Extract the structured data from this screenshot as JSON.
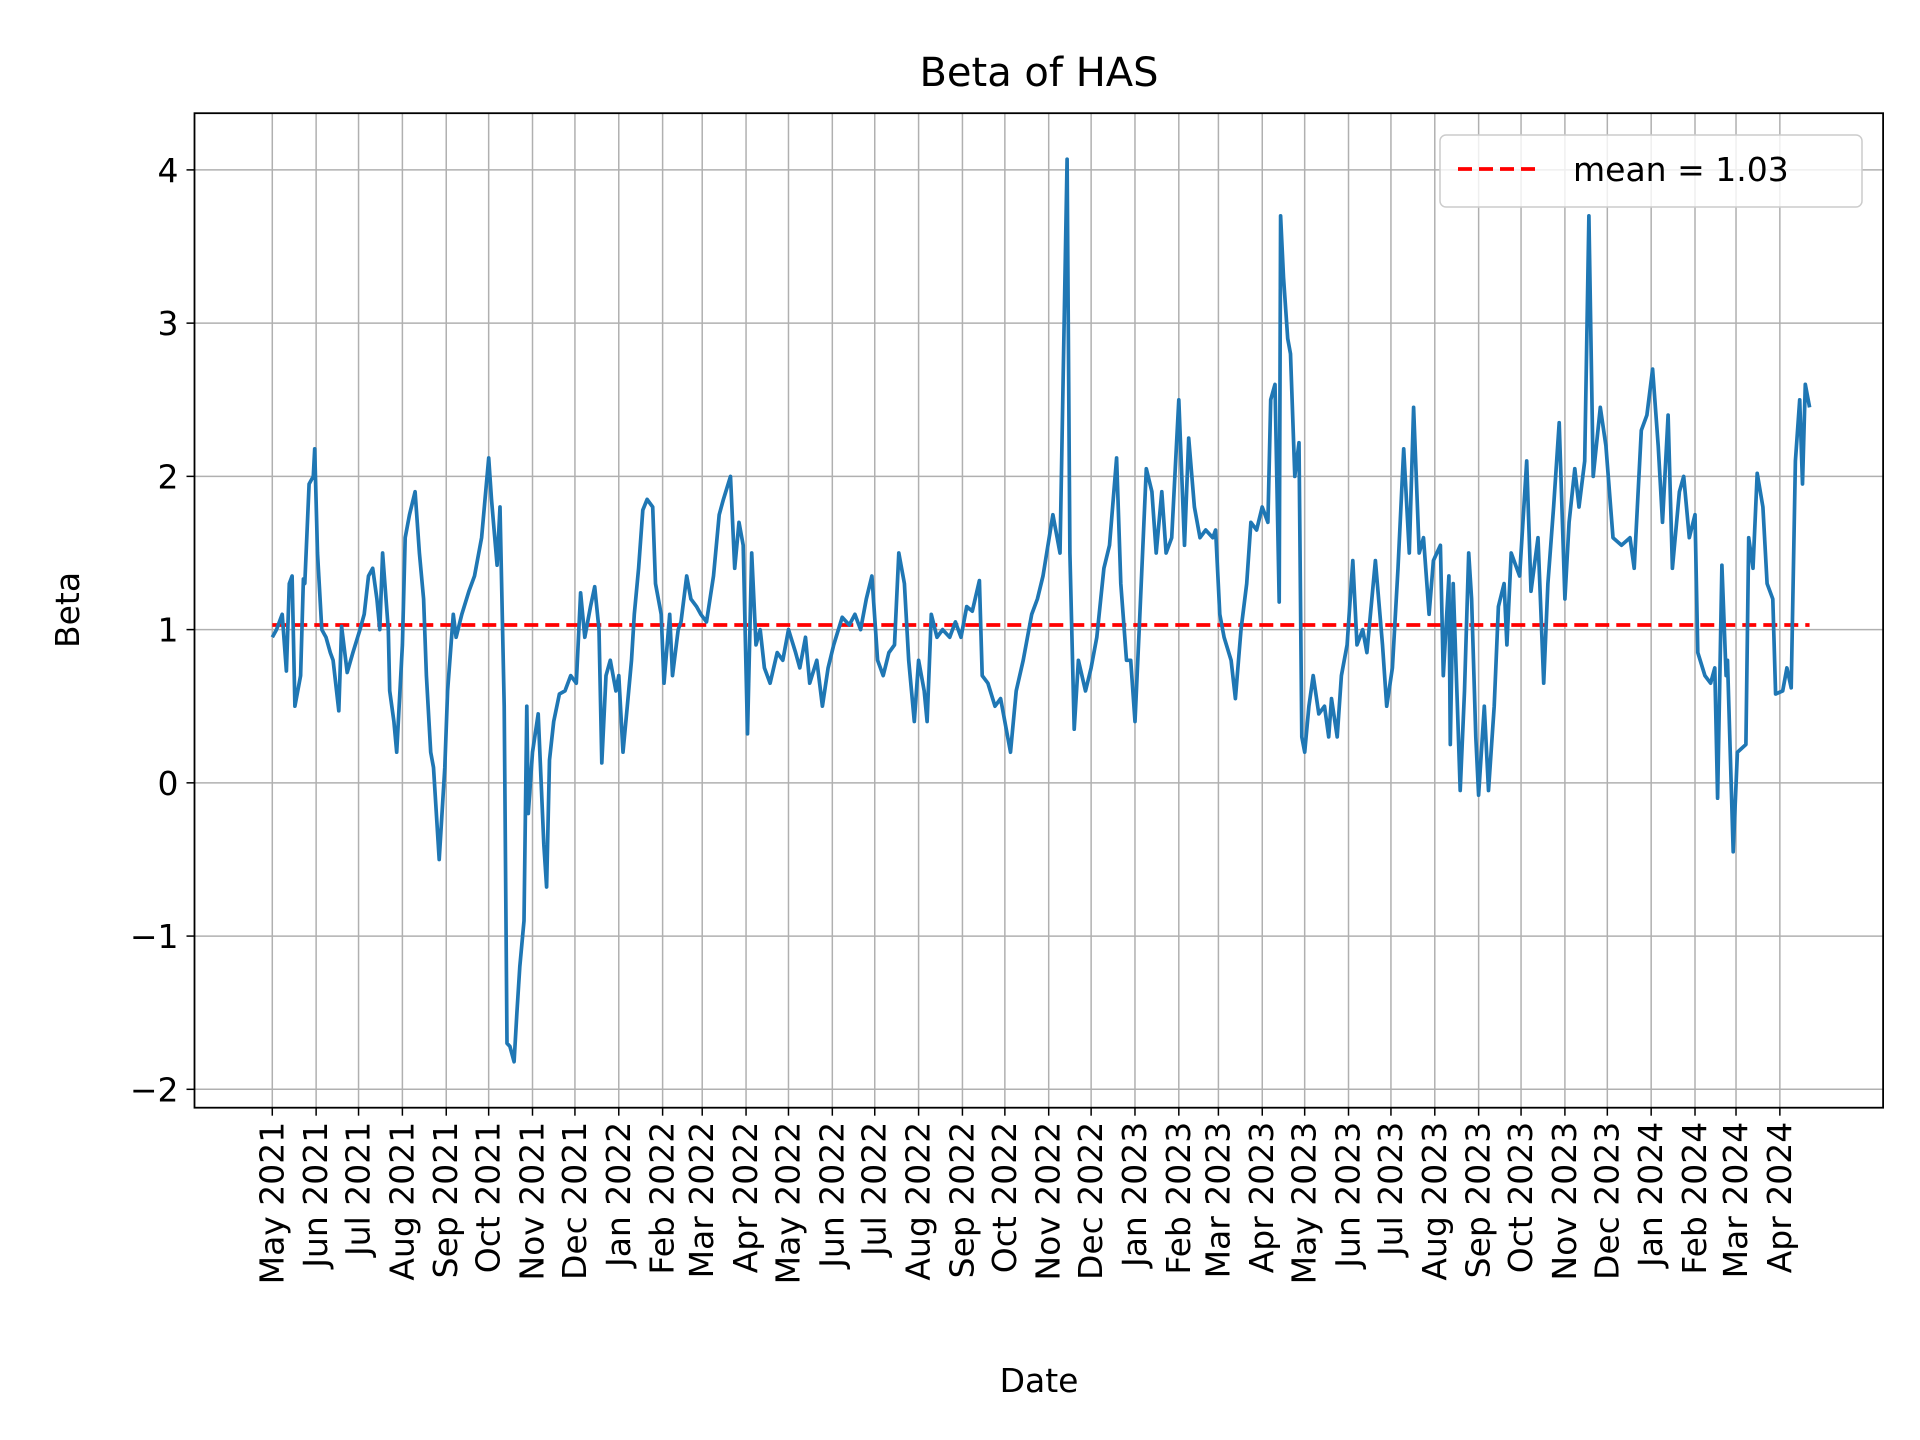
{
  "chart_data": {
    "type": "line",
    "title": "Beta of HAS",
    "xlabel": "Date",
    "ylabel": "Beta",
    "xlim": [
      "2021-03-07",
      "2024-06-13"
    ],
    "ylim": [
      -2.12,
      4.37
    ],
    "yticks": [
      -2,
      -1,
      0,
      1,
      2,
      3,
      4
    ],
    "ytick_labels": [
      "−2",
      "−1",
      "0",
      "1",
      "2",
      "3",
      "4"
    ],
    "xtick_labels": [
      "May 2021",
      "Jun 2021",
      "Jul 2021",
      "Aug 2021",
      "Sep 2021",
      "Oct 2021",
      "Nov 2021",
      "Dec 2021",
      "Jan 2022",
      "Feb 2022",
      "Mar 2022",
      "Apr 2022",
      "May 2022",
      "Jun 2022",
      "Jul 2022",
      "Aug 2022",
      "Sep 2022",
      "Oct 2022",
      "Nov 2022",
      "Dec 2022",
      "Jan 2023",
      "Feb 2023",
      "Mar 2023",
      "Apr 2023",
      "May 2023",
      "Jun 2023",
      "Jul 2023",
      "Aug 2023",
      "Sep 2023",
      "Oct 2023",
      "Nov 2023",
      "Dec 2023",
      "Jan 2024",
      "Feb 2024",
      "Mar 2024",
      "Apr 2024"
    ],
    "grid": true,
    "legend_position": "top-right",
    "colors": {
      "series": "#1f77b4",
      "mean": "#ff0000",
      "grid": "#b0b0b0"
    },
    "mean": {
      "value": 1.03,
      "label": "mean = 1.03",
      "style": "dashed"
    },
    "series": [
      {
        "x": [
          "2021-05-01",
          "2021-05-04",
          "2021-05-08",
          "2021-05-11",
          "2021-05-13",
          "2021-05-15",
          "2021-05-17",
          "2021-05-21",
          "2021-05-23",
          "2021-05-24",
          "2021-05-27",
          "2021-05-30",
          "2021-05-31",
          "2021-06-02",
          "2021-06-05",
          "2021-06-08",
          "2021-06-11",
          "2021-06-13",
          "2021-06-17",
          "2021-06-19",
          "2021-06-23",
          "2021-06-27",
          "2021-07-02",
          "2021-07-05",
          "2021-07-08",
          "2021-07-11",
          "2021-07-14",
          "2021-07-16",
          "2021-07-18",
          "2021-07-22",
          "2021-07-23",
          "2021-07-26",
          "2021-07-28",
          "2021-08-01",
          "2021-08-03",
          "2021-08-06",
          "2021-08-10",
          "2021-08-13",
          "2021-08-16",
          "2021-08-18",
          "2021-08-21",
          "2021-08-23",
          "2021-08-27",
          "2021-08-31",
          "2021-09-02",
          "2021-09-06",
          "2021-09-08",
          "2021-09-12",
          "2021-09-17",
          "2021-09-21",
          "2021-09-26",
          "2021-10-01",
          "2021-10-03",
          "2021-10-07",
          "2021-10-09",
          "2021-10-12",
          "2021-10-14",
          "2021-10-16",
          "2021-10-19",
          "2021-10-21",
          "2021-10-23",
          "2021-10-26",
          "2021-10-28",
          "2021-10-29",
          "2021-11-01",
          "2021-11-05",
          "2021-11-09",
          "2021-11-11",
          "2021-11-13",
          "2021-11-16",
          "2021-11-20",
          "2021-11-24",
          "2021-11-28",
          "2021-12-02",
          "2021-12-05",
          "2021-12-08",
          "2021-12-12",
          "2021-12-15",
          "2021-12-18",
          "2021-12-20",
          "2021-12-23",
          "2021-12-26",
          "2021-12-30",
          "2022-01-01",
          "2022-01-04",
          "2022-01-07",
          "2022-01-10",
          "2022-01-12",
          "2022-01-15",
          "2022-01-18",
          "2022-01-21",
          "2022-01-25",
          "2022-01-27",
          "2022-01-31",
          "2022-02-02",
          "2022-02-06",
          "2022-02-08",
          "2022-02-12",
          "2022-02-14",
          "2022-02-18",
          "2022-02-21",
          "2022-02-25",
          "2022-02-28",
          "2022-03-04",
          "2022-03-09",
          "2022-03-13",
          "2022-03-16",
          "2022-03-21",
          "2022-03-24",
          "2022-03-27",
          "2022-03-30",
          "2022-04-02",
          "2022-04-05",
          "2022-04-08",
          "2022-04-11",
          "2022-04-14",
          "2022-04-18",
          "2022-04-23",
          "2022-04-27",
          "2022-05-01",
          "2022-05-06",
          "2022-05-09",
          "2022-05-13",
          "2022-05-16",
          "2022-05-21",
          "2022-05-25",
          "2022-05-29",
          "2022-06-02",
          "2022-06-08",
          "2022-06-13",
          "2022-06-17",
          "2022-06-21",
          "2022-06-25",
          "2022-06-29",
          "2022-07-03",
          "2022-07-07",
          "2022-07-11",
          "2022-07-15",
          "2022-07-18",
          "2022-07-22",
          "2022-07-25",
          "2022-07-29",
          "2022-08-01",
          "2022-08-05",
          "2022-08-07",
          "2022-08-10",
          "2022-08-14",
          "2022-08-18",
          "2022-08-23",
          "2022-08-27",
          "2022-08-31",
          "2022-09-04",
          "2022-09-08",
          "2022-09-13",
          "2022-09-15",
          "2022-09-19",
          "2022-09-24",
          "2022-09-28",
          "2022-10-05",
          "2022-10-09",
          "2022-10-14",
          "2022-10-20",
          "2022-10-24",
          "2022-10-28",
          "2022-11-04",
          "2022-11-09",
          "2022-11-14",
          "2022-11-16",
          "2022-11-19",
          "2022-11-22",
          "2022-11-27",
          "2022-12-01",
          "2022-12-05",
          "2022-12-10",
          "2022-12-14",
          "2022-12-19",
          "2022-12-22",
          "2022-12-26",
          "2022-12-29",
          "2023-01-01",
          "2023-01-04",
          "2023-01-09",
          "2023-01-13",
          "2023-01-16",
          "2023-01-20",
          "2023-01-23",
          "2023-01-27",
          "2023-02-01",
          "2023-02-05",
          "2023-02-08",
          "2023-02-12",
          "2023-02-16",
          "2023-02-20",
          "2023-02-25",
          "2023-02-27",
          "2023-03-02",
          "2023-03-05",
          "2023-03-10",
          "2023-03-13",
          "2023-03-17",
          "2023-03-21",
          "2023-03-24",
          "2023-03-28",
          "2023-04-01",
          "2023-04-05",
          "2023-04-07",
          "2023-04-10",
          "2023-04-13",
          "2023-04-14",
          "2023-04-16",
          "2023-04-19",
          "2023-04-21",
          "2023-04-24",
          "2023-04-27",
          "2023-04-29",
          "2023-05-01",
          "2023-05-04",
          "2023-05-07",
          "2023-05-11",
          "2023-05-15",
          "2023-05-18",
          "2023-05-20",
          "2023-05-24",
          "2023-05-27",
          "2023-05-31",
          "2023-06-04",
          "2023-06-07",
          "2023-06-11",
          "2023-06-14",
          "2023-06-20",
          "2023-06-25",
          "2023-06-28",
          "2023-07-02",
          "2023-07-06",
          "2023-07-10",
          "2023-07-14",
          "2023-07-17",
          "2023-07-21",
          "2023-07-24",
          "2023-07-28",
          "2023-07-31",
          "2023-08-05",
          "2023-08-07",
          "2023-08-11",
          "2023-08-12",
          "2023-08-14",
          "2023-08-17",
          "2023-08-19",
          "2023-08-22",
          "2023-08-25",
          "2023-08-27",
          "2023-08-30",
          "2023-09-01",
          "2023-09-05",
          "2023-09-08",
          "2023-09-12",
          "2023-09-15",
          "2023-09-19",
          "2023-09-21",
          "2023-09-24",
          "2023-09-30",
          "2023-10-05",
          "2023-10-08",
          "2023-10-13",
          "2023-10-17",
          "2023-10-20",
          "2023-10-24",
          "2023-10-28",
          "2023-11-01",
          "2023-11-04",
          "2023-11-08",
          "2023-11-11",
          "2023-11-15",
          "2023-11-18",
          "2023-11-21",
          "2023-11-26",
          "2023-11-30",
          "2023-12-05",
          "2023-12-11",
          "2023-12-17",
          "2023-12-20",
          "2023-12-25",
          "2023-12-29",
          "2024-01-02",
          "2024-01-06",
          "2024-01-09",
          "2024-01-13",
          "2024-01-16",
          "2024-01-21",
          "2024-01-24",
          "2024-01-28",
          "2024-02-01",
          "2024-02-03",
          "2024-02-08",
          "2024-02-12",
          "2024-02-15",
          "2024-02-17",
          "2024-02-20",
          "2024-02-23",
          "2024-02-24",
          "2024-02-28",
          "2024-03-02",
          "2024-03-08",
          "2024-03-10",
          "2024-03-13",
          "2024-03-16",
          "2024-03-20",
          "2024-03-23",
          "2024-03-27",
          "2024-03-29",
          "2024-04-03",
          "2024-04-06",
          "2024-04-09",
          "2024-04-12",
          "2024-04-15",
          "2024-04-17",
          "2024-04-19",
          "2024-04-22"
        ],
        "y": [
          0.95,
          1.0,
          1.1,
          0.73,
          1.3,
          1.35,
          0.5,
          0.7,
          1.33,
          1.3,
          1.95,
          2.0,
          2.18,
          1.5,
          1.0,
          0.95,
          0.85,
          0.8,
          0.47,
          1.02,
          0.72,
          0.85,
          1.0,
          1.1,
          1.35,
          1.4,
          1.2,
          1.0,
          1.5,
          1.0,
          0.6,
          0.4,
          0.2,
          0.9,
          1.6,
          1.75,
          1.9,
          1.5,
          1.2,
          0.7,
          0.2,
          0.1,
          -0.5,
          0.1,
          0.6,
          1.1,
          0.95,
          1.1,
          1.25,
          1.35,
          1.6,
          2.12,
          1.85,
          1.42,
          1.8,
          0.5,
          -1.7,
          -1.72,
          -1.82,
          -1.5,
          -1.2,
          -0.9,
          0.5,
          -0.2,
          0.2,
          0.45,
          -0.4,
          -0.68,
          0.15,
          0.4,
          0.58,
          0.6,
          0.7,
          0.65,
          1.24,
          0.95,
          1.15,
          1.28,
          1.0,
          0.13,
          0.7,
          0.8,
          0.6,
          0.7,
          0.2,
          0.5,
          0.8,
          1.1,
          1.4,
          1.78,
          1.85,
          1.8,
          1.3,
          1.1,
          0.65,
          1.1,
          0.7,
          1.0,
          1.05,
          1.35,
          1.2,
          1.15,
          1.1,
          1.05,
          1.35,
          1.75,
          1.85,
          2.0,
          1.4,
          1.7,
          1.55,
          0.32,
          1.5,
          0.9,
          1.0,
          0.75,
          0.65,
          0.85,
          0.8,
          1.0,
          0.85,
          0.75,
          0.95,
          0.65,
          0.8,
          0.5,
          0.75,
          0.9,
          1.08,
          1.03,
          1.1,
          1.0,
          1.2,
          1.35,
          0.8,
          0.7,
          0.85,
          0.9,
          1.5,
          1.3,
          0.8,
          0.4,
          0.8,
          0.6,
          0.4,
          1.1,
          0.95,
          1.0,
          0.95,
          1.05,
          0.95,
          1.15,
          1.12,
          1.32,
          0.7,
          0.65,
          0.5,
          0.55,
          0.2,
          0.6,
          0.8,
          1.1,
          1.2,
          1.35,
          1.75,
          1.5,
          4.07,
          1.5,
          0.35,
          0.8,
          0.6,
          0.75,
          0.95,
          1.4,
          1.55,
          2.12,
          1.3,
          0.8,
          0.8,
          0.4,
          1.0,
          2.05,
          1.9,
          1.5,
          1.9,
          1.5,
          1.6,
          2.5,
          1.55,
          2.25,
          1.8,
          1.6,
          1.65,
          1.6,
          1.65,
          1.1,
          0.95,
          0.8,
          0.55,
          1.0,
          1.3,
          1.7,
          1.65,
          1.8,
          1.7,
          2.5,
          2.6,
          1.18,
          3.7,
          3.3,
          2.9,
          2.8,
          2.0,
          2.22,
          0.3,
          0.2,
          0.5,
          0.7,
          0.45,
          0.5,
          0.3,
          0.55,
          0.3,
          0.7,
          0.9,
          1.45,
          0.9,
          1.0,
          0.85,
          1.45,
          0.9,
          0.5,
          0.75,
          1.4,
          2.18,
          1.5,
          2.45,
          1.5,
          1.6,
          1.1,
          1.45,
          1.55,
          0.7,
          1.35,
          0.25,
          1.3,
          0.5,
          -0.05,
          0.6,
          1.5,
          1.2,
          0.3,
          -0.08,
          0.5,
          -0.05,
          0.5,
          1.15,
          1.3,
          0.9,
          1.5,
          1.35,
          2.1,
          1.25,
          1.6,
          0.65,
          1.3,
          1.8,
          2.35,
          1.2,
          1.7,
          2.05,
          1.8,
          2.1,
          3.7,
          2.0,
          2.45,
          2.2,
          1.6,
          1.55,
          1.6,
          1.4,
          2.3,
          2.4,
          2.7,
          2.2,
          1.7,
          2.4,
          1.4,
          1.9,
          2.0,
          1.6,
          1.75,
          0.85,
          0.7,
          0.65,
          0.75,
          -0.1,
          1.42,
          0.7,
          0.8,
          -0.45,
          0.2,
          0.25,
          1.6,
          1.4,
          2.02,
          1.8,
          1.3,
          1.2,
          0.58,
          0.6,
          0.75,
          0.62,
          2.1,
          2.5,
          1.95,
          2.6,
          2.45
        ]
      }
    ]
  }
}
